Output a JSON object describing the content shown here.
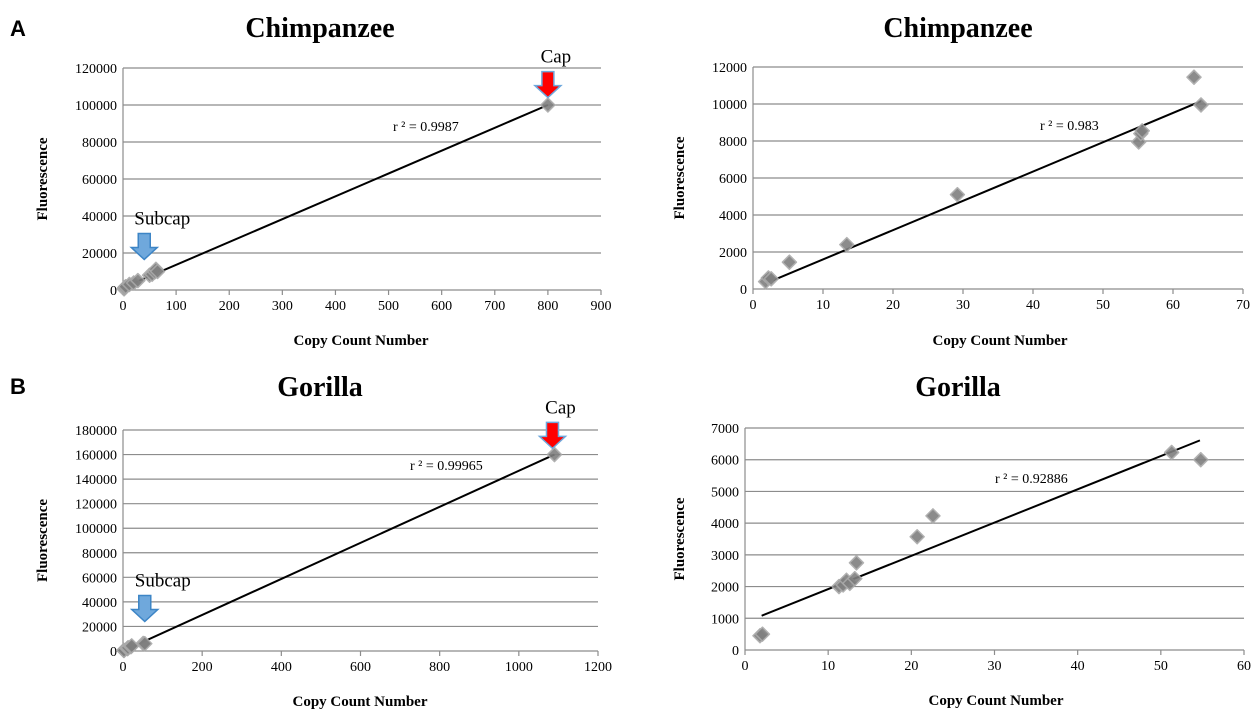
{
  "panel_labels": [
    "A",
    "B"
  ],
  "chart_data": [
    {
      "type": "scatter",
      "title": "Chimpanzee",
      "xlabel": "Copy Count Number",
      "ylabel": "Fluorescence",
      "xlim": [
        0,
        900
      ],
      "ylim": [
        0,
        120000
      ],
      "xticks": [
        0,
        100,
        200,
        300,
        400,
        500,
        600,
        700,
        800,
        900
      ],
      "yticks": [
        0,
        20000,
        40000,
        60000,
        80000,
        100000,
        120000
      ],
      "grid": "horizontal",
      "series": [
        {
          "points": [
            [
              2,
              600
            ],
            [
              3,
              1200
            ],
            [
              5,
              1800
            ],
            [
              12,
              3000
            ],
            [
              20,
              3800
            ],
            [
              28,
              5100
            ],
            [
              50,
              8000
            ],
            [
              55,
              8500
            ],
            [
              60,
              9800
            ],
            [
              62,
              11200
            ],
            [
              65,
              10000
            ],
            [
              800,
              100000
            ]
          ]
        }
      ],
      "trendline": {
        "x": [
          2,
          800
        ],
        "y": [
          1500,
          100000
        ]
      },
      "annotation": "r ² = 0.9987",
      "callouts": [
        {
          "label": "Subcap",
          "color": "#6fa8dc",
          "x": 40,
          "y": 16500
        },
        {
          "label": "Cap",
          "color": "#ff0000",
          "x": 800,
          "y": 104000
        }
      ]
    },
    {
      "type": "scatter",
      "title": "Chimpanzee",
      "xlabel": "Copy Count Number",
      "ylabel": "Fluorescence",
      "xlim": [
        0,
        70
      ],
      "ylim": [
        0,
        12000
      ],
      "xticks": [
        0,
        10,
        20,
        30,
        40,
        50,
        60,
        70
      ],
      "yticks": [
        0,
        2000,
        4000,
        6000,
        8000,
        10000,
        12000
      ],
      "grid": "horizontal",
      "series": [
        {
          "points": [
            [
              1.8,
              400
            ],
            [
              2.2,
              600
            ],
            [
              2.6,
              550
            ],
            [
              5.2,
              1450
            ],
            [
              13.4,
              2400
            ],
            [
              29.2,
              5100
            ],
            [
              55.1,
              7950
            ],
            [
              55.4,
              8400
            ],
            [
              55.6,
              8550
            ],
            [
              63,
              11450
            ],
            [
              64,
              9950
            ]
          ]
        }
      ],
      "trendline": {
        "x": [
          1.8,
          64
        ],
        "y": [
          300,
          10150
        ]
      },
      "annotation": "r ² = 0.983"
    },
    {
      "type": "scatter",
      "title": "Gorilla",
      "xlabel": "Copy Count Number",
      "ylabel": "Fluorescence",
      "xlim": [
        0,
        1200
      ],
      "ylim": [
        0,
        180000
      ],
      "xticks": [
        0,
        200,
        400,
        600,
        800,
        1000,
        1200
      ],
      "yticks": [
        0,
        20000,
        40000,
        60000,
        80000,
        100000,
        120000,
        140000,
        160000,
        180000
      ],
      "grid": "horizontal",
      "series": [
        {
          "points": [
            [
              2,
              500
            ],
            [
              2.5,
              450
            ],
            [
              11,
              2000
            ],
            [
              12,
              2100
            ],
            [
              13,
              2700
            ],
            [
              20,
              3500
            ],
            [
              22,
              4200
            ],
            [
              51,
              6200
            ],
            [
              55,
              6000
            ],
            [
              1090,
              160000
            ]
          ]
        }
      ],
      "trendline": {
        "x": [
          0,
          1090
        ],
        "y": [
          0,
          160000
        ]
      },
      "annotation": "r ² = 0.99965",
      "callouts": [
        {
          "label": "Subcap",
          "color": "#6fa8dc",
          "x": 55,
          "y": 24000
        },
        {
          "label": "Cap",
          "color": "#ff0000",
          "x": 1085,
          "y": 165000
        }
      ]
    },
    {
      "type": "scatter",
      "title": "Gorilla",
      "xlabel": "Copy Count Number",
      "ylabel": "Fluorescence",
      "xlim": [
        0,
        60
      ],
      "ylim": [
        0,
        7000
      ],
      "xticks": [
        0,
        10,
        20,
        30,
        40,
        50,
        60
      ],
      "yticks": [
        0,
        1000,
        2000,
        3000,
        4000,
        5000,
        6000,
        7000
      ],
      "grid": "horizontal",
      "series": [
        {
          "points": [
            [
              1.8,
              450
            ],
            [
              2.1,
              500
            ],
            [
              11.3,
              2000
            ],
            [
              11.8,
              2050
            ],
            [
              12.2,
              2200
            ],
            [
              12.6,
              2100
            ],
            [
              13.2,
              2250
            ],
            [
              13.4,
              2750
            ],
            [
              20.7,
              3570
            ],
            [
              22.6,
              4230
            ],
            [
              51.3,
              6230
            ],
            [
              54.8,
              6000
            ]
          ]
        }
      ],
      "trendline": {
        "x": [
          2,
          54.7
        ],
        "y": [
          1080,
          6610
        ]
      },
      "annotation": "r ² = 0.92886"
    }
  ]
}
